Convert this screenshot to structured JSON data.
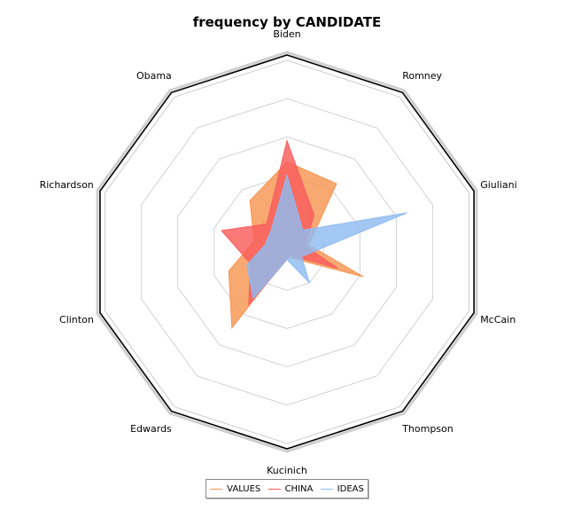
{
  "chart_data": {
    "type": "radar",
    "title": "frequency by CANDIDATE",
    "categories": [
      "Biden",
      "Romney",
      "Giuliani",
      "McCain",
      "Thompson",
      "Kucinich",
      "Clinton",
      "Edwards",
      "Richardson",
      "Obama"
    ],
    "categories_display_order": [
      "Biden",
      "Romney",
      "Giuliani",
      "McCain",
      "Thompson",
      "Kucinich",
      "Edwards",
      "Clinton",
      "Richardson",
      "Obama"
    ],
    "rmax": 5,
    "grid_rings": 5,
    "legend": "bottom",
    "series": [
      {
        "name": "VALUES",
        "color": "#f79552",
        "values": [
          2.35,
          2.2,
          0.6,
          2.1,
          0.2,
          0.15,
          1.6,
          2.45,
          0.9,
          1.65
        ]
      },
      {
        "name": "CHINA",
        "color": "#f95d5d",
        "values": [
          2.9,
          1.2,
          0.5,
          1.4,
          0.1,
          0.2,
          1.0,
          1.7,
          1.8,
          0.9
        ]
      },
      {
        "name": "IDEAS",
        "color": "#8fbcf2",
        "values": [
          2.0,
          0.7,
          3.3,
          0.4,
          1.0,
          0.2,
          1.1,
          1.5,
          0.6,
          0.7
        ]
      }
    ]
  }
}
